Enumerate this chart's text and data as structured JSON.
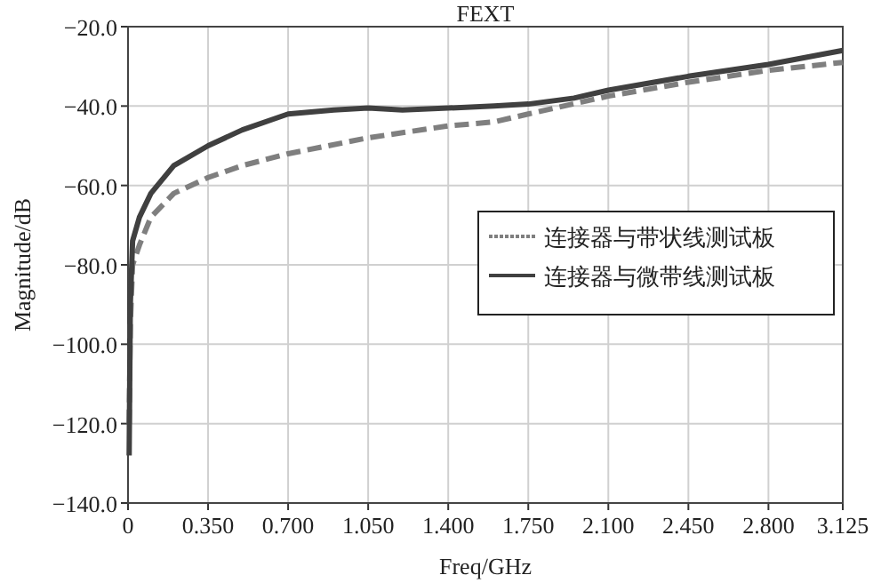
{
  "chart_data": {
    "type": "line",
    "title": "FEXT",
    "xlabel": "Freq/GHz",
    "ylabel": "Magnitude/dB",
    "xlim": [
      0,
      3.125
    ],
    "xticks": [
      {
        "value": 0,
        "label": "0"
      },
      {
        "value": 0.35,
        "label": "0.350"
      },
      {
        "value": 0.7,
        "label": "0.700"
      },
      {
        "value": 1.05,
        "label": "1.050"
      },
      {
        "value": 1.4,
        "label": "1.400"
      },
      {
        "value": 1.75,
        "label": "1.750"
      },
      {
        "value": 2.1,
        "label": "2.100"
      },
      {
        "value": 2.45,
        "label": "2.450"
      },
      {
        "value": 2.8,
        "label": "2.800"
      },
      {
        "value": 3.125,
        "label": "3.125"
      }
    ],
    "ylim": [
      -140,
      -20
    ],
    "yticks": [
      {
        "value": -140,
        "label": "−140.0"
      },
      {
        "value": -120,
        "label": "−120.0"
      },
      {
        "value": -100,
        "label": "−100.0"
      },
      {
        "value": -80,
        "label": "−80.0"
      },
      {
        "value": -60,
        "label": "−60.0"
      },
      {
        "value": -40,
        "label": "−40.0"
      },
      {
        "value": -20,
        "label": "−20.0"
      }
    ],
    "grid": true,
    "legend": "right",
    "marker": "none",
    "series": [
      {
        "name": "连接器与带状线测试板",
        "color": "#7f7f7f",
        "line_style": "dashed",
        "x": [
          0.005,
          0.01,
          0.02,
          0.05,
          0.1,
          0.2,
          0.35,
          0.5,
          0.7,
          1.05,
          1.4,
          1.6,
          1.75,
          2.1,
          2.45,
          2.8,
          3.125
        ],
        "values": [
          -120,
          -95,
          -80,
          -75,
          -68,
          -62,
          -58,
          -55,
          -52,
          -48,
          -45,
          -44,
          -42,
          -37.5,
          -34,
          -31,
          -29
        ]
      },
      {
        "name": "连接器与微带线测试板",
        "color": "#404040",
        "line_style": "solid",
        "x": [
          0.005,
          0.01,
          0.02,
          0.05,
          0.1,
          0.2,
          0.35,
          0.5,
          0.7,
          0.9,
          1.05,
          1.2,
          1.4,
          1.6,
          1.75,
          1.95,
          2.1,
          2.45,
          2.8,
          3.125
        ],
        "values": [
          -128,
          -90,
          -74,
          -68,
          -62,
          -55,
          -50,
          -46,
          -42,
          -41,
          -40.5,
          -41,
          -40.5,
          -40,
          -39.5,
          -38,
          -36,
          -32.5,
          -29.5,
          -26
        ]
      }
    ]
  }
}
